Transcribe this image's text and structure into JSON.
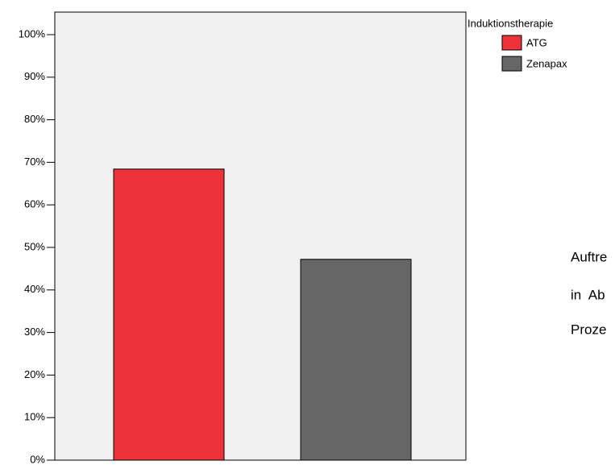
{
  "chart_data": {
    "type": "bar",
    "legend_title": "Induktionstherapie",
    "categories": [
      null
    ],
    "series": [
      {
        "name": "ATG",
        "color": "#ee3239",
        "values": [
          68.4
        ]
      },
      {
        "name": "Zenapax",
        "color": "#666666",
        "values": [
          47.2
        ]
      }
    ],
    "ylim": [
      0,
      105.3
    ],
    "yticks": [
      {
        "value": 0,
        "label": "0%"
      },
      {
        "value": 10,
        "label": "10%"
      },
      {
        "value": 20,
        "label": "20%"
      },
      {
        "value": 30,
        "label": "30%"
      },
      {
        "value": 40,
        "label": "40%"
      },
      {
        "value": 50,
        "label": "50%"
      },
      {
        "value": 60,
        "label": "60%"
      },
      {
        "value": 70,
        "label": "70%"
      },
      {
        "value": 80,
        "label": "80%"
      },
      {
        "value": 90,
        "label": "90%"
      },
      {
        "value": 100,
        "label": "100%"
      }
    ],
    "legend_position": "top-right",
    "annotations": [
      "Auftre",
      "in  Ab",
      "Proze"
    ]
  }
}
